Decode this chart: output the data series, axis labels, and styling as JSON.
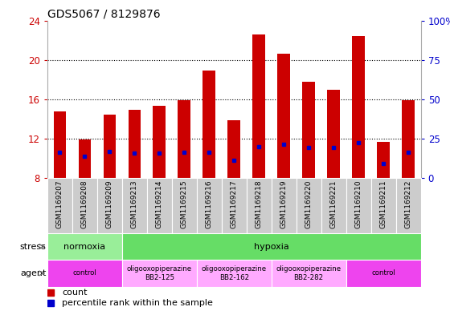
{
  "title": "GDS5067 / 8129876",
  "samples": [
    "GSM1169207",
    "GSM1169208",
    "GSM1169209",
    "GSM1169213",
    "GSM1169214",
    "GSM1169215",
    "GSM1169216",
    "GSM1169217",
    "GSM1169218",
    "GSM1169219",
    "GSM1169220",
    "GSM1169221",
    "GSM1169210",
    "GSM1169211",
    "GSM1169212"
  ],
  "counts": [
    14.8,
    11.9,
    14.4,
    14.9,
    15.3,
    15.9,
    18.9,
    13.9,
    22.6,
    20.6,
    17.8,
    17.0,
    22.4,
    11.7,
    15.9
  ],
  "percentile_values": [
    10.6,
    10.2,
    10.7,
    10.55,
    10.55,
    10.6,
    10.6,
    9.8,
    11.2,
    11.4,
    11.1,
    11.1,
    11.6,
    9.5,
    10.6
  ],
  "y_min": 8,
  "y_max": 24,
  "y_ticks": [
    8,
    12,
    16,
    20,
    24
  ],
  "y_right_ticks": [
    0,
    25,
    50,
    75,
    100
  ],
  "bar_color": "#cc0000",
  "percentile_color": "#0000cc",
  "bg_color": "#ffffff",
  "plot_bg": "#ffffff",
  "stress_normoxia_color": "#99ee99",
  "stress_hypoxia_color": "#66dd66",
  "agent_control_color": "#ee44ee",
  "agent_oligo_color": "#ffaaff",
  "grid_color": "#000000",
  "tick_bg": "#cccccc",
  "bar_width": 0.5
}
